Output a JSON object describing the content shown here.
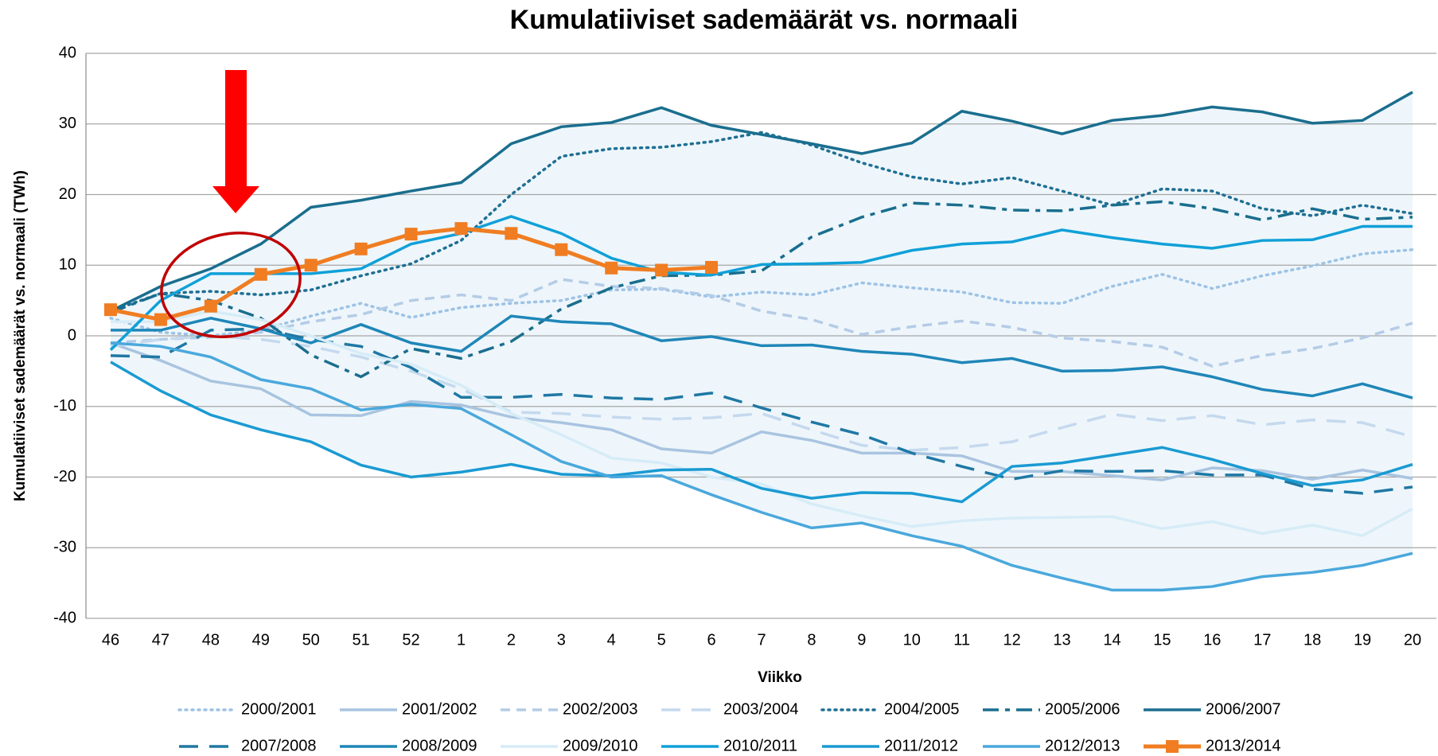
{
  "chart_data": {
    "type": "line",
    "title": "Kumulatiiviset sademäärät vs. normaali",
    "xlabel": "Viikko",
    "ylabel": "Kumulatiiviset sademäärät vs. normaali (TWh)",
    "categories": [
      "46",
      "47",
      "48",
      "49",
      "50",
      "51",
      "52",
      "1",
      "2",
      "3",
      "4",
      "5",
      "6",
      "7",
      "8",
      "9",
      "10",
      "11",
      "12",
      "13",
      "14",
      "15",
      "16",
      "17",
      "18",
      "19",
      "20"
    ],
    "ylim": [
      -40,
      40
    ],
    "yticks": [
      -40,
      -30,
      -20,
      -10,
      0,
      10,
      20,
      30,
      40
    ],
    "grid": true,
    "band": true,
    "series": [
      {
        "name": "2000/2001",
        "color": "#9dc3e6",
        "style": "dotted",
        "values": [
          2.5,
          0.5,
          0,
          0.8,
          2.8,
          4.6,
          2.6,
          4,
          4.6,
          5,
          6.5,
          6.6,
          5.5,
          6.2,
          5.8,
          7.5,
          6.8,
          6.2,
          4.7,
          4.6,
          7,
          8.7,
          6.7,
          8.5,
          9.9,
          11.6,
          12.2
        ]
      },
      {
        "name": "2001/2002",
        "color": "#a9c4e0",
        "style": "solid",
        "values": [
          -1,
          -3.5,
          -6.4,
          -7.5,
          -11.2,
          -11.3,
          -9.3,
          -9.8,
          -11.5,
          -12.3,
          -13.3,
          -16,
          -16.6,
          -13.6,
          -14.8,
          -16.6,
          -16.6,
          -17,
          -19.2,
          -19.2,
          -19.8,
          -20.4,
          -18.7,
          -19.1,
          -20.3,
          -19,
          -20.2
        ]
      },
      {
        "name": "2002/2003",
        "color": "#b4cce6",
        "style": "dashed",
        "values": [
          -1,
          -0.5,
          -0.2,
          0.5,
          2,
          3,
          5,
          5.8,
          5,
          8,
          7,
          6.7,
          5.7,
          3.5,
          2.3,
          0.2,
          1.3,
          2.1,
          1.2,
          -0.3,
          -0.8,
          -1.6,
          -4.3,
          -2.8,
          -1.8,
          -0.3,
          1.8
        ]
      },
      {
        "name": "2003/2004",
        "color": "#c5d9ee",
        "style": "longdash",
        "values": [
          -1.5,
          -0.5,
          0,
          -0.5,
          -1.5,
          -3,
          -5,
          -7.5,
          -10.8,
          -11,
          -11.5,
          -11.8,
          -11.6,
          -11,
          -13.3,
          -15.5,
          -16.2,
          -15.8,
          -15,
          -13,
          -11.1,
          -12,
          -11.3,
          -12.6,
          -11.9,
          -12.3,
          -14.3
        ]
      },
      {
        "name": "2004/2005",
        "color": "#1f6f93",
        "style": "dotted",
        "values": [
          3.5,
          6,
          6.3,
          5.8,
          6.5,
          8.5,
          10.2,
          13.5,
          20,
          25.4,
          26.5,
          26.7,
          27.5,
          28.8,
          27,
          24.5,
          22.5,
          21.5,
          22.4,
          20.5,
          18.5,
          20.8,
          20.5,
          18,
          17,
          18.5,
          17.3
        ]
      },
      {
        "name": "2005/2006",
        "color": "#1a6e8e",
        "style": "dashdot",
        "values": [
          3.3,
          6,
          5,
          2.5,
          -2.7,
          -5.8,
          -1.8,
          -3.2,
          -0.8,
          3.8,
          6.8,
          8.5,
          8.6,
          9.2,
          14,
          16.8,
          18.8,
          18.5,
          17.8,
          17.7,
          18.5,
          19,
          18,
          16.4,
          18,
          16.5,
          16.8
        ]
      },
      {
        "name": "2006/2007",
        "color": "#1a6e8e",
        "style": "solid",
        "values": [
          3.5,
          7,
          9.5,
          13,
          18.2,
          19.2,
          20.5,
          21.7,
          27.2,
          29.6,
          30.2,
          32.3,
          29.8,
          28.5,
          27.2,
          25.8,
          27.3,
          31.8,
          30.4,
          28.6,
          30.5,
          31.2,
          32.4,
          31.7,
          30.1,
          30.5,
          34.5
        ]
      },
      {
        "name": "2007/2008",
        "color": "#1f78a4",
        "style": "longdash",
        "values": [
          -2.8,
          -3,
          0.8,
          1,
          -0.5,
          -1.5,
          -4.5,
          -8.7,
          -8.7,
          -8.3,
          -8.8,
          -9,
          -8.1,
          -10.2,
          -12.2,
          -14,
          -16.6,
          -18.5,
          -20.3,
          -19.1,
          -19.2,
          -19.1,
          -19.7,
          -19.7,
          -21.7,
          -22.3,
          -21.4
        ]
      },
      {
        "name": "2008/2009",
        "color": "#1f86b8",
        "style": "solid",
        "values": [
          0.8,
          0.8,
          2.5,
          1,
          -1,
          1.6,
          -1,
          -2.2,
          2.8,
          2,
          1.7,
          -0.7,
          -0.1,
          -1.4,
          -1.3,
          -2.2,
          -2.6,
          -3.8,
          -3.2,
          -5,
          -4.9,
          -4.4,
          -5.8,
          -7.6,
          -8.5,
          -6.8,
          -8.8
        ]
      },
      {
        "name": "2009/2010",
        "color": "#d6ecf7",
        "style": "solid",
        "values": [
          2,
          2,
          3.5,
          2.3,
          0,
          -2.5,
          -4,
          -7,
          -11,
          -14,
          -17.3,
          -18,
          -20,
          -21,
          -23.8,
          -25.5,
          -27,
          -26.2,
          -25.8,
          -25.7,
          -25.6,
          -27.3,
          -26.3,
          -28,
          -26.8,
          -28.3,
          -24.5
        ]
      },
      {
        "name": "2010/2011",
        "color": "#10a0d8",
        "style": "solid",
        "values": [
          -2,
          5,
          8.8,
          8.8,
          8.8,
          9.5,
          13,
          14.5,
          16.9,
          14.5,
          11,
          9,
          8.6,
          10.1,
          10.2,
          10.4,
          12.1,
          13,
          13.3,
          15,
          13.9,
          13,
          12.4,
          13.5,
          13.6,
          15.5,
          15.5
        ]
      },
      {
        "name": "2011/2012",
        "color": "#1a9ad2",
        "style": "solid",
        "values": [
          -3.7,
          -7.8,
          -11.2,
          -13.3,
          -15,
          -18.3,
          -20,
          -19.3,
          -18.2,
          -19.6,
          -19.8,
          -19,
          -18.9,
          -21.6,
          -23,
          -22.2,
          -22.3,
          -23.5,
          -18.5,
          -18,
          -16.9,
          -15.8,
          -17.5,
          -19.5,
          -21.2,
          -20.4,
          -18.2
        ]
      },
      {
        "name": "2012/2013",
        "color": "#4aa8dc",
        "style": "solid",
        "values": [
          -1,
          -1.5,
          -3,
          -6.2,
          -7.5,
          -10.5,
          -9.7,
          -10.3,
          -14,
          -17.8,
          -20,
          -19.8,
          -22.5,
          -25,
          -27.2,
          -26.5,
          -28.3,
          -29.8,
          -32.5,
          -34.3,
          -36,
          -36,
          -35.5,
          -34.1,
          -33.5,
          -32.5,
          -30.8
        ]
      },
      {
        "name": "2013/2014",
        "color": "#f07d22",
        "style": "solid",
        "marker": "square",
        "values": [
          3.7,
          2.3,
          4.2,
          8.7,
          10,
          12.3,
          14.4,
          15.2,
          14.5,
          12.2,
          9.6,
          9.3,
          9.7,
          null,
          null,
          null,
          null,
          null,
          null,
          null,
          null,
          null,
          null,
          null,
          null,
          null,
          null
        ]
      }
    ]
  }
}
